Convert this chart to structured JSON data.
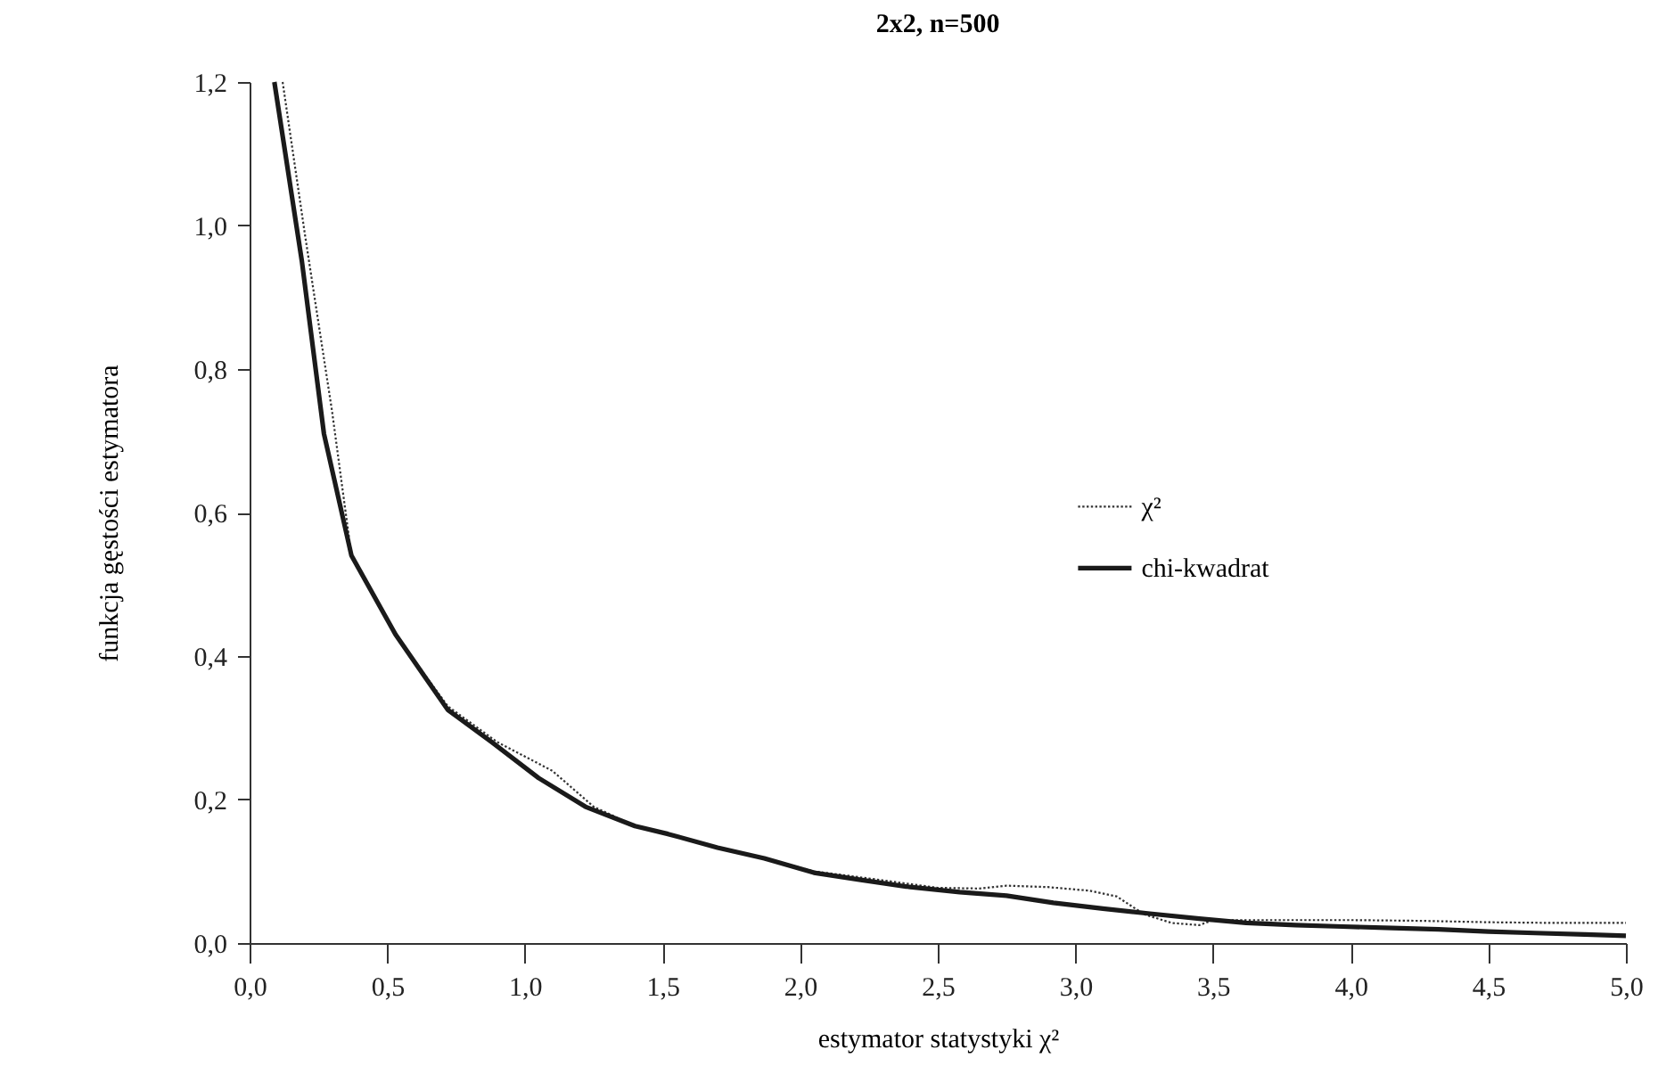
{
  "chart_data": {
    "type": "line",
    "title": "2x2, n=500",
    "xlabel": "estymator statystyki χ²",
    "ylabel": "funkcja gęstości estymatora",
    "xlim": [
      0,
      5
    ],
    "ylim": [
      0,
      1.2
    ],
    "xticks": [
      {
        "value": 0,
        "label": "0,0"
      },
      {
        "value": 0.5,
        "label": "0,5"
      },
      {
        "value": 1,
        "label": "1,0"
      },
      {
        "value": 1.5,
        "label": "1,5"
      },
      {
        "value": 2,
        "label": "2,0"
      },
      {
        "value": 2.5,
        "label": "2,5"
      },
      {
        "value": 3,
        "label": "3,0"
      },
      {
        "value": 3.5,
        "label": "3,5"
      },
      {
        "value": 4,
        "label": "4,0"
      },
      {
        "value": 4.5,
        "label": "4,5"
      },
      {
        "value": 5,
        "label": "5,0"
      }
    ],
    "yticks": [
      {
        "value": 0,
        "label": "0,0"
      },
      {
        "value": 0.2,
        "label": "0,2"
      },
      {
        "value": 0.4,
        "label": "0,4"
      },
      {
        "value": 0.6,
        "label": "0,6"
      },
      {
        "value": 0.8,
        "label": "0,8"
      },
      {
        "value": 1,
        "label": "1,0"
      },
      {
        "value": 1.2,
        "label": "1,2"
      }
    ],
    "grid": false,
    "legend": "right",
    "marker": "none",
    "series": [
      {
        "name": "χ²",
        "color": "#333333",
        "line_style": "dotted",
        "x": [
          0.12,
          0.2,
          0.3,
          0.37,
          0.53,
          0.72,
          0.9,
          1.1,
          1.25,
          1.4,
          1.52,
          1.7,
          1.87,
          2.05,
          2.25,
          2.5,
          2.65,
          2.75,
          2.9,
          3.05,
          3.15,
          3.25,
          3.35,
          3.45,
          3.5,
          3.75,
          4.0,
          4.25,
          4.5,
          4.75,
          5.0
        ],
        "values": [
          1.2,
          0.99,
          0.74,
          0.54,
          0.43,
          0.33,
          0.28,
          0.24,
          0.19,
          0.163,
          0.152,
          0.133,
          0.118,
          0.1,
          0.09,
          0.077,
          0.076,
          0.08,
          0.078,
          0.073,
          0.065,
          0.04,
          0.028,
          0.025,
          0.032,
          0.032,
          0.032,
          0.031,
          0.029,
          0.028,
          0.028
        ]
      },
      {
        "name": "chi-kwadrat",
        "color": "#1a1a1a",
        "line_style": "solid",
        "x": [
          0.09,
          0.19,
          0.27,
          0.37,
          0.53,
          0.72,
          0.88,
          1.05,
          1.22,
          1.4,
          1.52,
          1.7,
          1.87,
          2.05,
          2.22,
          2.4,
          2.58,
          2.75,
          2.92,
          3.1,
          3.27,
          3.45,
          3.62,
          3.8,
          3.97,
          4.15,
          4.32,
          4.5,
          4.67,
          4.85,
          5.0
        ],
        "values": [
          1.2,
          0.95,
          0.71,
          0.54,
          0.43,
          0.325,
          0.28,
          0.23,
          0.19,
          0.163,
          0.152,
          0.133,
          0.118,
          0.098,
          0.088,
          0.078,
          0.071,
          0.066,
          0.056,
          0.048,
          0.041,
          0.034,
          0.028,
          0.025,
          0.023,
          0.021,
          0.019,
          0.016,
          0.014,
          0.012,
          0.01
        ]
      }
    ]
  }
}
